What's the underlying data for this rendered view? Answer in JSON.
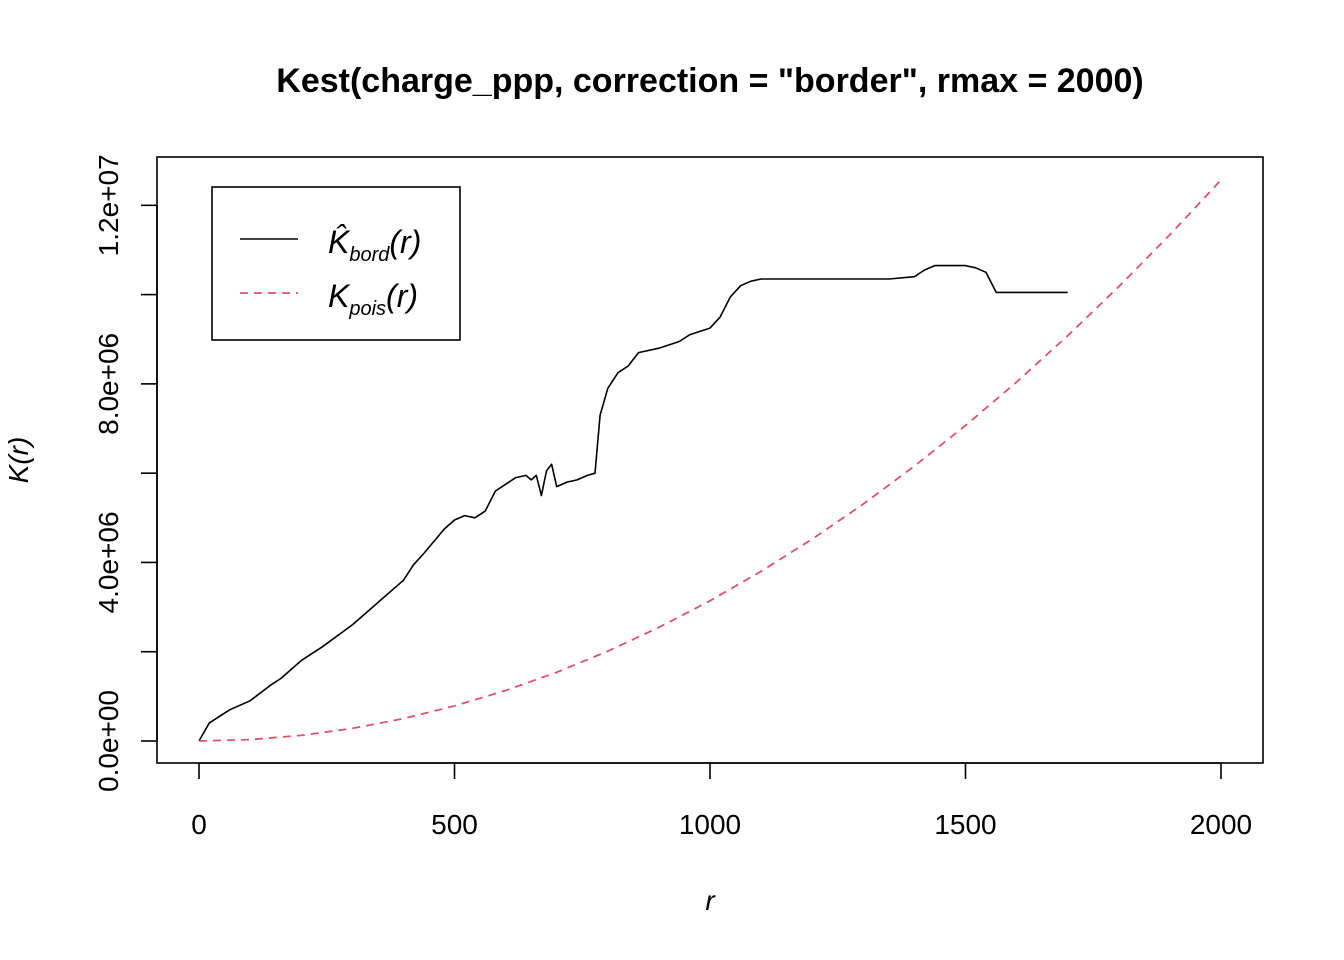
{
  "chart_data": {
    "type": "line",
    "title": "Kest(charge_ppp, correction = \"border\", rmax = 2000)",
    "xlabel": "r",
    "ylabel": "K(r)",
    "xlim": [
      0,
      2000
    ],
    "ylim": [
      0,
      12500000
    ],
    "x_ticks": [
      0,
      500,
      1000,
      1500,
      2000
    ],
    "x_tick_labels": [
      "0",
      "500",
      "1000",
      "1500",
      "2000"
    ],
    "y_ticks": [
      0,
      2000000,
      4000000,
      6000000,
      8000000,
      10000000,
      12000000
    ],
    "y_tick_labels": [
      "0.0e+00",
      "",
      "4.0e+06",
      "",
      "8.0e+06",
      "",
      "1.2e+07"
    ],
    "grid": false,
    "legend_position": "top-left",
    "series": [
      {
        "name": "K̂bord(r)",
        "label_main": "K̂",
        "label_sub": "bord",
        "label_tail": "(r)",
        "color": "#000000",
        "dash": "solid",
        "x": [
          0,
          20,
          40,
          60,
          80,
          100,
          140,
          160,
          200,
          240,
          300,
          340,
          380,
          400,
          420,
          440,
          480,
          500,
          520,
          540,
          560,
          580,
          600,
          620,
          640,
          650,
          660,
          670,
          680,
          690,
          700,
          720,
          740,
          760,
          775,
          785,
          800,
          820,
          840,
          860,
          900,
          940,
          960,
          1000,
          1020,
          1040,
          1060,
          1080,
          1100,
          1200,
          1300,
          1350,
          1400,
          1420,
          1440,
          1500,
          1520,
          1540,
          1560,
          1600,
          1650,
          1700
        ],
        "y": [
          0,
          400000,
          550000,
          700000,
          800000,
          900000,
          1250000,
          1400000,
          1800000,
          2100000,
          2600000,
          3000000,
          3400000,
          3600000,
          3950000,
          4200000,
          4750000,
          4950000,
          5050000,
          5000000,
          5150000,
          5600000,
          5750000,
          5900000,
          5950000,
          5850000,
          5950000,
          5500000,
          6050000,
          6200000,
          5700000,
          5800000,
          5850000,
          5950000,
          6000000,
          7300000,
          7900000,
          8250000,
          8400000,
          8700000,
          8800000,
          8950000,
          9100000,
          9250000,
          9500000,
          9950000,
          10200000,
          10300000,
          10350000,
          10350000,
          10350000,
          10350000,
          10400000,
          10550000,
          10650000,
          10650000,
          10600000,
          10500000,
          10050000,
          10050000,
          10050000,
          10050000
        ]
      },
      {
        "name": "Kpois(r)",
        "label_main": "K",
        "label_sub": "pois",
        "label_tail": "(r)",
        "color": "#DF536B",
        "dash": "dashed",
        "formula": "pi*r^2",
        "x": [
          0,
          100,
          200,
          300,
          400,
          500,
          600,
          700,
          800,
          900,
          1000,
          1100,
          1200,
          1300,
          1400,
          1500,
          1600,
          1700,
          1800,
          1900,
          2000
        ],
        "y": [
          0,
          31416,
          125664,
          282743,
          502655,
          785398,
          1130973,
          1539380,
          2010619,
          2544690,
          3141593,
          3801327,
          4523893,
          5309292,
          6157522,
          7068583,
          8042477,
          9079203,
          10178760,
          11341149,
          12566371
        ]
      }
    ]
  }
}
